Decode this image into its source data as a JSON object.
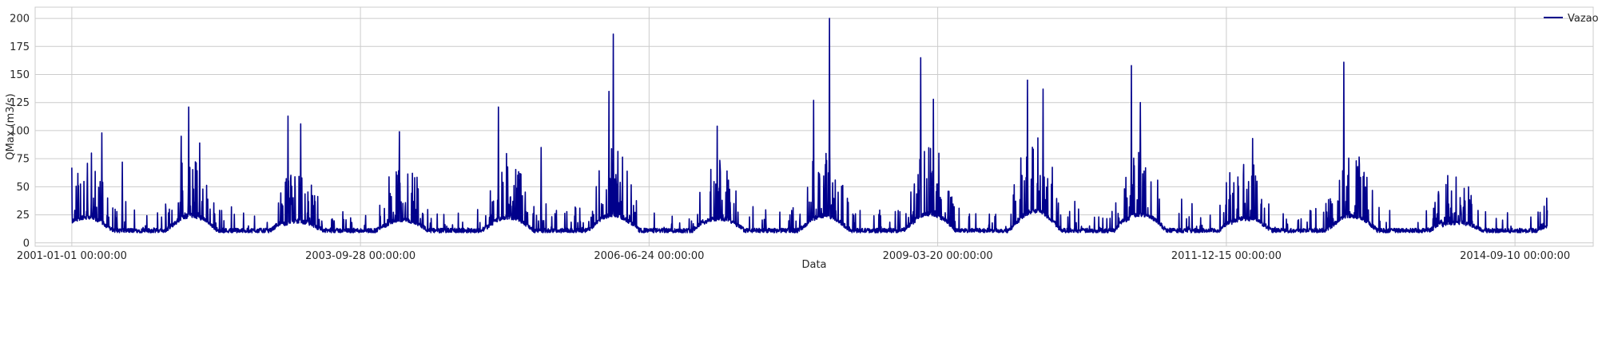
{
  "chart_data": {
    "type": "line",
    "xlabel": "Data",
    "ylabel": "QMax (m3/s)",
    "x_ticks": [
      "2001-01-01 00:00:00",
      "2003-09-28 00:00:00",
      "2006-06-24 00:00:00",
      "2009-03-20 00:00:00",
      "2011-12-15 00:00:00",
      "2014-09-10 00:00:00"
    ],
    "y_ticks": [
      0,
      25,
      50,
      75,
      100,
      125,
      150,
      175,
      200
    ],
    "ylim": [
      -3,
      210
    ],
    "xlim": [
      "2000-08-27",
      "2015-06-08"
    ],
    "x_range_data": [
      "2001-01-01",
      "2014-12-31"
    ],
    "grid": true,
    "legend_position": "top-right",
    "colors": {
      "series": "#00008b",
      "grid": "#cccccc",
      "frame": "#cccccc"
    },
    "series": [
      {
        "name": "Vazao",
        "sampled_extremes": [
          {
            "date": "2001-01-01",
            "value": 67
          },
          {
            "date": "2001-03-10",
            "value": 80
          },
          {
            "date": "2001-04-15",
            "value": 98
          },
          {
            "date": "2001-06-25",
            "value": 72
          },
          {
            "date": "2002-01-15",
            "value": 95
          },
          {
            "date": "2002-02-10",
            "value": 121
          },
          {
            "date": "2002-03-20",
            "value": 89
          },
          {
            "date": "2003-01-20",
            "value": 113
          },
          {
            "date": "2003-03-05",
            "value": 106
          },
          {
            "date": "2004-02-10",
            "value": 99
          },
          {
            "date": "2005-01-18",
            "value": 121
          },
          {
            "date": "2005-06-15",
            "value": 85
          },
          {
            "date": "2006-02-05",
            "value": 135
          },
          {
            "date": "2006-02-20",
            "value": 186
          },
          {
            "date": "2007-02-15",
            "value": 104
          },
          {
            "date": "2008-01-15",
            "value": 127
          },
          {
            "date": "2008-03-10",
            "value": 200
          },
          {
            "date": "2009-01-20",
            "value": 165
          },
          {
            "date": "2009-03-05",
            "value": 128
          },
          {
            "date": "2010-01-25",
            "value": 145
          },
          {
            "date": "2010-03-20",
            "value": 137
          },
          {
            "date": "2011-01-20",
            "value": 158
          },
          {
            "date": "2011-02-20",
            "value": 125
          },
          {
            "date": "2012-03-15",
            "value": 93
          },
          {
            "date": "2013-01-25",
            "value": 161
          },
          {
            "date": "2014-01-20",
            "value": 60
          },
          {
            "date": "2014-12-31",
            "value": 29
          }
        ]
      }
    ]
  }
}
